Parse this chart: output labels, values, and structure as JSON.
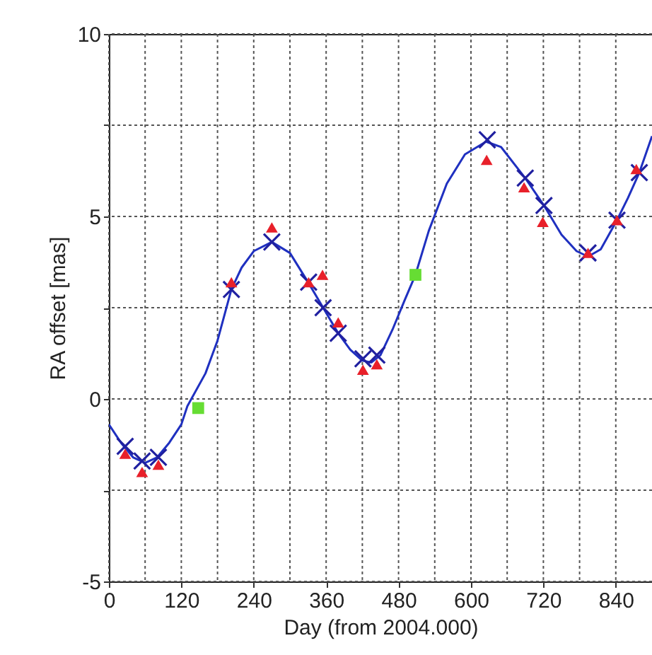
{
  "chart_data": {
    "type": "scatter",
    "xlabel": "Day (from 2004.000)",
    "ylabel": "RA offset [mas]",
    "xlim": [
      0,
      900
    ],
    "ylim": [
      -5,
      10
    ],
    "xticks": [
      0,
      {
        "value": 60,
        "label": null
      },
      120,
      {
        "value": 180,
        "label": null
      },
      240,
      {
        "value": 300,
        "label": null
      },
      360,
      {
        "value": 420,
        "label": null
      },
      480,
      {
        "value": 540,
        "label": null
      },
      600,
      {
        "value": 660,
        "label": null
      },
      720,
      {
        "value": 780,
        "label": null
      },
      840
    ],
    "yticks": [
      -5,
      {
        "value": -2.5,
        "label": null
      },
      0,
      {
        "value": 2.5,
        "label": null
      },
      5,
      {
        "value": 7.5,
        "label": null
      },
      10
    ],
    "grid": true,
    "series": [
      {
        "type": "line",
        "line_style": "solid",
        "color": "#1f30c0",
        "x": [
          0,
          20,
          40,
          60,
          80,
          100,
          120,
          130,
          160,
          180,
          203,
          220,
          240,
          270,
          300,
          330,
          355,
          380,
          400,
          420,
          435,
          450,
          470,
          490,
          508,
          530,
          560,
          590,
          625,
          650,
          690,
          721,
          750,
          775,
          794,
          815,
          842,
          860,
          879,
          900
        ],
        "values": [
          -0.7,
          -1.2,
          -1.6,
          -1.75,
          -1.6,
          -1.2,
          -0.7,
          -0.2,
          0.7,
          1.6,
          3.0,
          3.6,
          4.05,
          4.3,
          4.0,
          3.2,
          2.5,
          1.8,
          1.35,
          1.05,
          1.0,
          1.2,
          1.9,
          2.7,
          3.4,
          4.6,
          5.9,
          6.7,
          7.05,
          6.9,
          6.05,
          5.3,
          4.5,
          4.05,
          3.9,
          4.1,
          4.9,
          5.5,
          6.2,
          7.2
        ]
      },
      {
        "marker": "cross",
        "color": "#2020a0",
        "x": [
          27,
          55,
          82,
          203,
          270,
          331,
          355,
          380,
          421,
          444,
          627,
          690,
          721,
          794,
          842,
          879
        ],
        "values": [
          -1.3,
          -1.7,
          -1.6,
          3.0,
          4.3,
          3.2,
          2.5,
          1.8,
          1.1,
          1.2,
          7.1,
          6.05,
          5.3,
          4.0,
          4.9,
          6.2
        ]
      },
      {
        "marker": "triangle",
        "color": "#e8202a",
        "x": [
          27,
          55,
          82,
          203,
          270,
          331,
          354,
          380,
          421,
          444,
          626,
          688,
          719,
          794,
          842,
          874
        ],
        "values": [
          -1.5,
          -2.0,
          -1.8,
          3.2,
          4.7,
          3.2,
          3.4,
          2.1,
          0.8,
          0.95,
          6.55,
          5.8,
          4.85,
          4.0,
          4.9,
          6.3
        ]
      },
      {
        "marker": "square",
        "color": "#66dd33",
        "x": [
          148,
          508
        ],
        "values": [
          -0.25,
          3.4
        ]
      }
    ]
  }
}
